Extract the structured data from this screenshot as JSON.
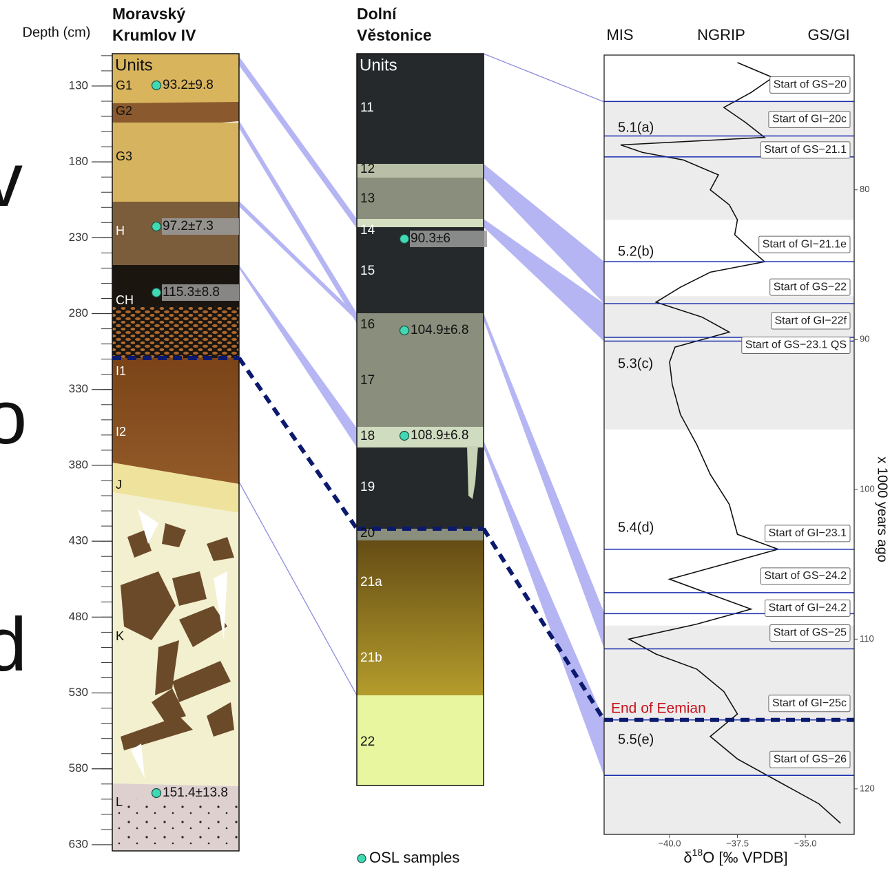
{
  "cropped_text": [
    "v",
    "o",
    "d"
  ],
  "depth_axis": {
    "label": "Depth (cm)",
    "lim": [
      108.7,
      634.1
    ],
    "ticks": [
      130,
      180,
      230,
      280,
      330,
      380,
      430,
      480,
      530,
      580,
      630
    ],
    "minor_ticks": [
      110,
      120,
      130,
      140,
      150,
      160,
      170,
      180,
      190,
      200,
      210,
      220,
      230,
      240,
      250,
      260,
      270,
      280,
      290,
      300,
      310,
      320,
      330,
      340,
      350,
      360,
      370,
      380,
      390,
      400,
      410,
      420,
      430,
      440,
      450,
      460,
      470,
      480,
      490,
      500,
      510,
      520,
      530,
      540,
      550,
      560,
      570,
      580,
      590,
      600,
      610,
      620,
      630
    ]
  },
  "moravsky": {
    "title_lines": [
      "Moravský",
      "Krumlov IV"
    ],
    "units_header": "Units",
    "units": [
      "G1",
      "G2",
      "G3",
      "H",
      "CH",
      "I1",
      "I2",
      "J",
      "K",
      "L"
    ],
    "osl": [
      "93.2±9.8",
      "97.2±7.3",
      "115.3±8.8",
      "151.4±13.8"
    ]
  },
  "dolni": {
    "title_lines": [
      "Dolní",
      "Věstonice"
    ],
    "units_header": "Units",
    "units": [
      "11",
      "12",
      "13",
      "14",
      "15",
      "16",
      "17",
      "18",
      "19",
      "20",
      "21a",
      "21b",
      "22"
    ],
    "osl": [
      "90.3±6",
      "104.9±6.8",
      "108.9±6.8"
    ]
  },
  "legend": "OSL samples",
  "ngrip": {
    "headers": [
      "MIS",
      "NGRIP",
      "GS/GI"
    ],
    "age_lim": [
      71,
      123.04
    ],
    "age_ticks": [
      80,
      90,
      100,
      110,
      120
    ],
    "age_label": "x 1000 years ago",
    "xlim": [
      -42.41,
      -33.2
    ],
    "xticks": [
      {
        "value": -40,
        "label": "−40.0"
      },
      {
        "value": -37.5,
        "label": "−37.5"
      },
      {
        "value": -35,
        "label": "−35.0"
      }
    ],
    "x_label": {
      "prefix": "δ",
      "sup": "18",
      "suffix": "O [‰ VPDB]"
    },
    "mis": [
      "5.1(a)",
      "5.2(b)",
      "5.3(c)",
      "5.4(d)",
      "5.5(e)"
    ],
    "shaded_bands": [
      [
        74.1,
        82.0
      ],
      [
        87.1,
        96.0
      ],
      [
        109.1,
        123.04
      ]
    ],
    "events": [
      {
        "label": "Start of GS−20",
        "age": 74.1
      },
      {
        "label": "Start of GI−20c",
        "age": 76.4
      },
      {
        "label": "Start of GS−21.1",
        "age": 77.8
      },
      {
        "label": "Start of GI−21.1e",
        "age": 84.8
      },
      {
        "label": "Start of GS−22",
        "age": 87.6
      },
      {
        "label": "Start of GI−22f",
        "age": 89.85
      },
      {
        "label": "Start of GS−23.1 QS",
        "age": 90.1
      },
      {
        "label": "Start of GI−23.1",
        "age": 104.0
      },
      {
        "label": "Start of GS−24.2",
        "age": 106.9
      },
      {
        "label": "Start of GI−24.2",
        "age": 108.3
      },
      {
        "label": "Start of GS−25",
        "age": 110.65
      },
      {
        "label": "Start of GI−25c",
        "age": 115.4
      },
      {
        "label": "Start of GS−26",
        "age": 119.1
      }
    ],
    "eemian": {
      "label": "End of Eemian",
      "age": 115.4
    },
    "age": [
      71.5,
      72.5,
      73.5,
      74.5,
      75.5,
      76.5,
      77.0,
      77.5,
      78.0,
      79.0,
      80.0,
      81.0,
      82.0,
      83.0,
      84.0,
      84.8,
      85.5,
      86.5,
      87.5,
      88.5,
      89.5,
      90.5,
      91.5,
      93.0,
      95.0,
      97.0,
      99.0,
      101.0,
      103.0,
      104.0,
      105.0,
      106.0,
      107.0,
      108.0,
      109.0,
      110.0,
      111.0,
      112.0,
      113.5,
      115.0,
      116.5,
      118.0,
      119.5,
      121.0,
      122.3
    ],
    "d18o": [
      -37.5,
      -36.2,
      -37.0,
      -38.0,
      -37.2,
      -36.5,
      -41.8,
      -41.0,
      -39.5,
      -38.2,
      -38.5,
      -37.8,
      -37.5,
      -37.6,
      -37.0,
      -36.5,
      -38.5,
      -39.6,
      -40.5,
      -38.8,
      -37.8,
      -39.8,
      -40.0,
      -39.9,
      -39.6,
      -39.0,
      -38.5,
      -37.8,
      -37.5,
      -36.0,
      -38.0,
      -40.0,
      -38.5,
      -37.0,
      -39.0,
      -41.5,
      -40.5,
      -39.0,
      -38.0,
      -37.5,
      -38.5,
      -37.5,
      -36.0,
      -34.5,
      -33.7
    ]
  }
}
